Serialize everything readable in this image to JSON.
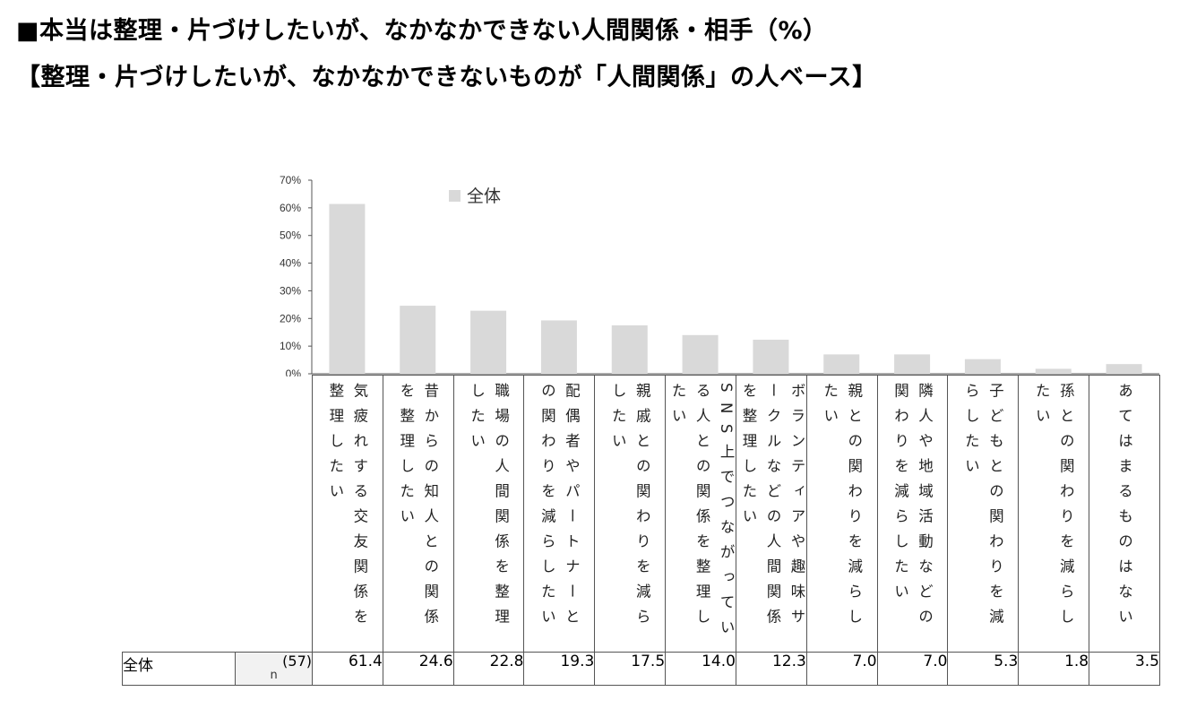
{
  "titles": {
    "main": "■本当は整理・片づけしたいが、なかなかできない人間関係・相手（%）",
    "sub": "【整理・片づけしたいが、なかなかできないものが「人間関係」の人ベース】"
  },
  "table": {
    "n_header": "n",
    "row_label": "全体",
    "n_value": "(57)"
  },
  "chart_data": {
    "type": "bar",
    "categories": [
      "気疲れする交友関係を整理したい",
      "昔からの知人との関係を整理したい",
      "職場の人間関係を整理したい",
      "配偶者やパートナーとの関わりを減らしたい",
      "親戚との関わりを減らしたい",
      "SNS上でつながっている人との関係を整理したい",
      "ボランティアや趣味サークルなどの人間関係を整理したい",
      "親との関わりを減らしたい",
      "隣人や地域活動などの関わりを減らしたい",
      "子どもとの関わりを減らしたい",
      "孫との関わりを減らしたい",
      "あてはまるものはない"
    ],
    "series": [
      {
        "name": "全体",
        "values": [
          61.4,
          24.6,
          22.8,
          19.3,
          17.5,
          14.0,
          12.3,
          7.0,
          7.0,
          5.3,
          1.8,
          3.5
        ],
        "labels": [
          "61.4",
          "24.6",
          "22.8",
          "19.3",
          "17.5",
          "14.0",
          "12.3",
          "7.0",
          "7.0",
          "5.3",
          "1.8",
          "3.5"
        ]
      }
    ],
    "yticks": [
      "0%",
      "10%",
      "20%",
      "30%",
      "40%",
      "50%",
      "60%",
      "70%"
    ],
    "ylim": [
      0,
      70
    ],
    "legend_position": "top",
    "colors": {
      "bar": "#d9d9d9",
      "axis": "#555555"
    }
  }
}
